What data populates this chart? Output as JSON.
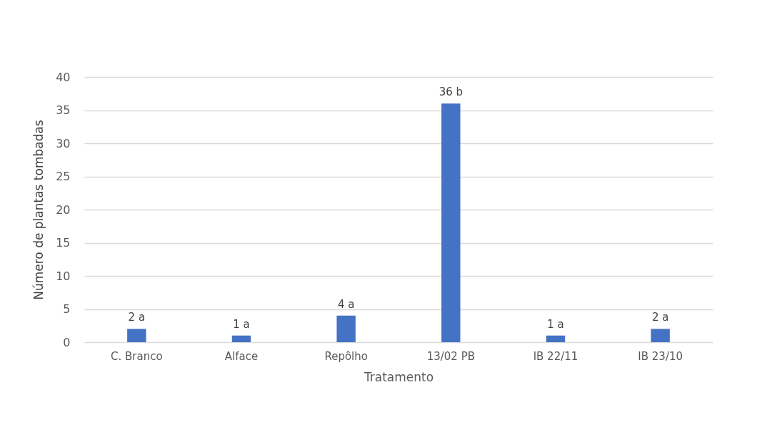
{
  "chart_data": {
    "type": "bar",
    "xlabel": "Tratamento",
    "ylabel": "Número de plantas tombadas",
    "categories": [
      "C. Branco",
      "Alface",
      "Repôlho",
      "13/02 PB",
      "IB 22/11",
      "IB 23/10"
    ],
    "values": [
      2,
      1,
      4,
      36,
      1,
      2
    ],
    "value_labels": [
      "2 a",
      "1 a",
      "4 a",
      "36 b",
      "1 a",
      "2 a"
    ],
    "color": "#4472c4",
    "ylim": [
      0,
      40
    ],
    "yticks": [
      0,
      5,
      10,
      15,
      20,
      25,
      30,
      35,
      40
    ],
    "grid": "y"
  }
}
